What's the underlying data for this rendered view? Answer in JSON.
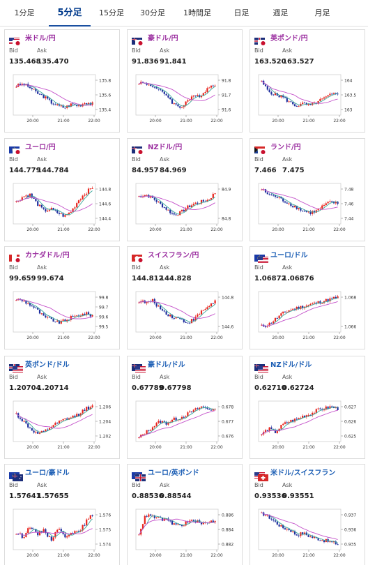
{
  "tabs": [
    "1分足",
    "5分足",
    "15分足",
    "30分足",
    "1時間足",
    "日足",
    "週足",
    "月足"
  ],
  "active_tab": 1,
  "colors": {
    "up": "#e8231c",
    "down": "#1f2f9e",
    "ma_short": "#3aa89b",
    "ma_long": "#c34fc9",
    "jpy_pair": "#9b2fa0",
    "cross_pair": "#1d5fb5",
    "active_tab": "#003a8c"
  },
  "labels": {
    "bid": "Bid",
    "ask": "Ask"
  },
  "cards": [
    {
      "name": "米ドル/円",
      "flags": [
        "us",
        "jp"
      ],
      "group": "jpy",
      "bid": "135.468",
      "ask": "135.470",
      "yticks": [
        "135.8",
        "135.6",
        "135.4"
      ],
      "xticks": [
        "20:00",
        "21:00",
        "22:00"
      ],
      "shape": [
        0.75,
        0.8,
        0.7,
        0.55,
        0.45,
        0.3,
        0.2,
        0.15,
        0.25,
        0.2,
        0.3,
        0.25
      ]
    },
    {
      "name": "豪ドル/円",
      "flags": [
        "au",
        "jp"
      ],
      "group": "jpy",
      "bid": "91.836",
      "ask": "91.841",
      "yticks": [
        "91.8",
        "91.7",
        "91.6"
      ],
      "xticks": [
        "20:00",
        "21:00",
        "22:00"
      ],
      "shape": [
        0.85,
        0.8,
        0.75,
        0.6,
        0.5,
        0.25,
        0.15,
        0.35,
        0.45,
        0.5,
        0.7,
        0.8
      ]
    },
    {
      "name": "英ポンド/円",
      "flags": [
        "uk",
        "jp"
      ],
      "group": "jpy",
      "bid": "163.520",
      "ask": "163.527",
      "yticks": [
        "164",
        "163.5",
        "163"
      ],
      "xticks": [
        "20:00",
        "21:00",
        "22:00"
      ],
      "shape": [
        0.85,
        0.6,
        0.5,
        0.45,
        0.3,
        0.2,
        0.25,
        0.2,
        0.3,
        0.4,
        0.5,
        0.55
      ]
    },
    {
      "name": "ユーロ/円",
      "flags": [
        "eu",
        "jp"
      ],
      "group": "jpy",
      "bid": "144.779",
      "ask": "144.784",
      "yticks": [
        "144.8",
        "144.6",
        "144.4"
      ],
      "xticks": [
        "20:00",
        "21:00",
        "22:00"
      ],
      "shape": [
        0.55,
        0.7,
        0.75,
        0.5,
        0.3,
        0.35,
        0.25,
        0.15,
        0.3,
        0.6,
        0.8,
        0.95
      ]
    },
    {
      "name": "NZドル/円",
      "flags": [
        "nz",
        "jp"
      ],
      "group": "jpy",
      "bid": "84.957",
      "ask": "84.969",
      "yticks": [
        "84.9",
        "84.8"
      ],
      "xticks": [
        "20:00",
        "21:00",
        "22:00"
      ],
      "shape": [
        0.7,
        0.75,
        0.65,
        0.5,
        0.35,
        0.2,
        0.25,
        0.4,
        0.5,
        0.55,
        0.6,
        0.8
      ]
    },
    {
      "name": "ランド/円",
      "flags": [
        "za",
        "jp"
      ],
      "group": "jpy",
      "bid": "7.466",
      "ask": "7.475",
      "yticks": [
        "7.48",
        "7.46",
        "7.44"
      ],
      "xticks": [
        "20:00",
        "21:00",
        "22:00"
      ],
      "shape": [
        0.9,
        0.75,
        0.7,
        0.6,
        0.5,
        0.4,
        0.3,
        0.25,
        0.3,
        0.45,
        0.55,
        0.5
      ]
    },
    {
      "name": "カナダドル/円",
      "flags": [
        "ca",
        "jp"
      ],
      "group": "jpy",
      "bid": "99.659",
      "ask": "99.674",
      "yticks": [
        "99.8",
        "99.7",
        "99.6",
        "99.5"
      ],
      "xticks": [
        "20:00",
        "21:00",
        "22:00"
      ],
      "shape": [
        0.85,
        0.8,
        0.7,
        0.55,
        0.35,
        0.3,
        0.2,
        0.25,
        0.35,
        0.4,
        0.45,
        0.4
      ]
    },
    {
      "name": "スイスフラン/円",
      "flags": [
        "ch",
        "jp"
      ],
      "group": "jpy",
      "bid": "144.812",
      "ask": "144.828",
      "yticks": [
        "144.8",
        "144.6"
      ],
      "xticks": [
        "20:00",
        "21:00",
        "22:00"
      ],
      "shape": [
        0.8,
        0.75,
        0.8,
        0.6,
        0.45,
        0.35,
        0.3,
        0.2,
        0.3,
        0.5,
        0.65,
        0.8
      ]
    },
    {
      "name": "ユーロ/ドル",
      "flags": [
        "eu",
        "us"
      ],
      "group": "cross",
      "bid": "1.06872",
      "ask": "1.06876",
      "yticks": [
        "1.068",
        "1.066"
      ],
      "xticks": [
        "20:00",
        "21:00",
        "22:00"
      ],
      "shape": [
        0.1,
        0.15,
        0.3,
        0.45,
        0.55,
        0.6,
        0.65,
        0.7,
        0.75,
        0.8,
        0.85,
        0.9
      ]
    },
    {
      "name": "英ポンド/ドル",
      "flags": [
        "uk",
        "us"
      ],
      "group": "cross",
      "bid": "1.20704",
      "ask": "1.20714",
      "yticks": [
        "1.206",
        "1.204",
        "1.202"
      ],
      "xticks": [
        "20:00",
        "21:00",
        "22:00"
      ],
      "shape": [
        0.7,
        0.5,
        0.3,
        0.15,
        0.2,
        0.35,
        0.45,
        0.55,
        0.6,
        0.7,
        0.85,
        0.9
      ]
    },
    {
      "name": "豪ドル/ドル",
      "flags": [
        "au",
        "us"
      ],
      "group": "cross",
      "bid": "0.67789",
      "ask": "0.67798",
      "yticks": [
        "0.678",
        "0.677",
        "0.676"
      ],
      "xticks": [
        "20:00",
        "21:00",
        "22:00"
      ],
      "shape": [
        0.05,
        0.2,
        0.35,
        0.5,
        0.45,
        0.55,
        0.6,
        0.7,
        0.8,
        0.9,
        0.85,
        0.8
      ]
    },
    {
      "name": "NZドル/ドル",
      "flags": [
        "nz",
        "us"
      ],
      "group": "cross",
      "bid": "0.62710",
      "ask": "0.62724",
      "yticks": [
        "0.627",
        "0.626",
        "0.625"
      ],
      "xticks": [
        "20:00",
        "21:00",
        "22:00"
      ],
      "shape": [
        0.15,
        0.3,
        0.2,
        0.4,
        0.5,
        0.55,
        0.65,
        0.7,
        0.8,
        0.85,
        0.9,
        0.85
      ]
    },
    {
      "name": "ユーロ/豪ドル",
      "flags": [
        "eu",
        "au"
      ],
      "group": "cross",
      "bid": "1.57641",
      "ask": "1.57655",
      "yticks": [
        "1.576",
        "1.575",
        "1.574"
      ],
      "xticks": [
        "20:00",
        "21:00",
        "22:00"
      ],
      "shape": [
        0.4,
        0.3,
        0.6,
        0.35,
        0.5,
        0.2,
        0.55,
        0.3,
        0.45,
        0.4,
        0.7,
        0.9
      ]
    },
    {
      "name": "ユーロ/英ポンド",
      "flags": [
        "eu",
        "uk"
      ],
      "group": "cross",
      "bid": "0.88536",
      "ask": "0.88544",
      "yticks": [
        "0.886",
        "0.884",
        "0.882"
      ],
      "xticks": [
        "20:00",
        "21:00",
        "22:00"
      ],
      "shape": [
        0.4,
        0.9,
        0.85,
        0.8,
        0.75,
        0.65,
        0.6,
        0.7,
        0.75,
        0.65,
        0.7,
        0.75
      ]
    },
    {
      "name": "米ドル/スイスフラン",
      "flags": [
        "us",
        "ch"
      ],
      "group": "cross",
      "bid": "0.93536",
      "ask": "0.93551",
      "yticks": [
        "0.937",
        "0.936",
        "0.935"
      ],
      "xticks": [
        "20:00",
        "21:00",
        "22:00"
      ],
      "shape": [
        0.95,
        0.85,
        0.7,
        0.55,
        0.5,
        0.35,
        0.4,
        0.3,
        0.25,
        0.2,
        0.15,
        0.1
      ]
    }
  ]
}
